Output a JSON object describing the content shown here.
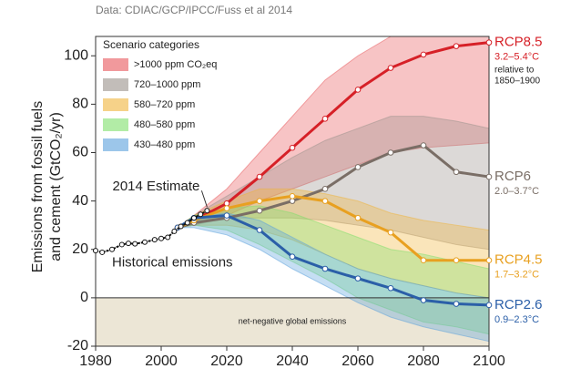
{
  "chart_data": {
    "type": "line",
    "source": "Data: CDIAC/GCP/IPCC/Fuss et al 2014",
    "ylabel": [
      "Emissions from fossil fuels",
      "and cement (GtCO₂/yr)"
    ],
    "xlim": [
      1980,
      2100
    ],
    "xticks": [
      1980,
      2000,
      2020,
      2040,
      2060,
      2080,
      2100
    ],
    "ylim": [
      -20,
      108
    ],
    "yticks": [
      -20,
      0,
      20,
      40,
      60,
      80,
      100
    ],
    "legend_title": "Scenario categories",
    "bands": {
      "x": [
        2010,
        2020,
        2030,
        2040,
        2050,
        2060,
        2070,
        2080,
        2090,
        2100
      ],
      "series": [
        {
          "name": ">1000 ppm CO₂eq",
          "color": "#e8555a",
          "low": [
            30,
            34,
            40,
            45,
            50,
            55,
            60,
            62,
            63,
            64
          ],
          "high": [
            34,
            45,
            60,
            75,
            90,
            100,
            108,
            108,
            108,
            108
          ]
        },
        {
          "name": "720–1000 ppm",
          "color": "#9a918b",
          "low": [
            30,
            33,
            33,
            33,
            32,
            30,
            28,
            25,
            22,
            20
          ],
          "high": [
            34,
            42,
            50,
            58,
            65,
            70,
            75,
            75,
            73,
            70
          ]
        },
        {
          "name": "580–720 ppm",
          "color": "#f0b43a",
          "low": [
            30,
            30,
            28,
            24,
            18,
            12,
            8,
            5,
            2,
            0
          ],
          "high": [
            34,
            40,
            45,
            45,
            43,
            40,
            35,
            32,
            30,
            28
          ]
        },
        {
          "name": "480–580 ppm",
          "color": "#7ee06a",
          "low": [
            30,
            28,
            22,
            15,
            8,
            0,
            -5,
            -10,
            -12,
            -15
          ],
          "high": [
            34,
            37,
            38,
            35,
            30,
            25,
            20,
            18,
            15,
            12
          ]
        },
        {
          "name": "430–480 ppm",
          "color": "#5aa0dc",
          "low": [
            29,
            26,
            20,
            12,
            5,
            -2,
            -8,
            -12,
            -15,
            -18
          ],
          "high": [
            33,
            35,
            32,
            25,
            18,
            12,
            8,
            5,
            2,
            0
          ]
        }
      ]
    },
    "series": [
      {
        "name": "RCP8.5",
        "temperature": "3.2–5.4°C",
        "note": [
          "relative to",
          "1850–1900"
        ],
        "color": "#d62027",
        "x": [
          2005,
          2010,
          2020,
          2030,
          2040,
          2050,
          2060,
          2070,
          2080,
          2090,
          2100
        ],
        "values": [
          29,
          32,
          39,
          50,
          62,
          74,
          86,
          95,
          100.5,
          104,
          105.5
        ]
      },
      {
        "name": "RCP6",
        "temperature": "2.0–3.7°C",
        "color": "#7a6e66",
        "x": [
          2005,
          2010,
          2020,
          2030,
          2040,
          2050,
          2060,
          2070,
          2080,
          2090,
          2100
        ],
        "values": [
          29,
          31,
          33,
          36,
          40,
          45,
          54,
          60,
          63,
          52,
          50
        ]
      },
      {
        "name": "RCP4.5",
        "temperature": "1.7–3.2°C",
        "color": "#e8a020",
        "x": [
          2005,
          2010,
          2020,
          2030,
          2040,
          2050,
          2060,
          2070,
          2080,
          2090,
          2100
        ],
        "values": [
          29,
          32,
          37,
          40,
          42,
          40,
          33,
          27,
          15.5,
          15.5,
          15.5
        ]
      },
      {
        "name": "RCP2.6",
        "temperature": "0.9–2.3°C",
        "color": "#2b5fa8",
        "x": [
          2005,
          2010,
          2020,
          2030,
          2040,
          2050,
          2060,
          2070,
          2080,
          2090,
          2100
        ],
        "values": [
          29,
          33,
          34,
          28,
          17,
          12,
          8,
          4,
          -1,
          -2.5,
          -3
        ]
      }
    ],
    "historical": {
      "name": "Historical emissions",
      "color": "#111111",
      "x": [
        1980,
        1982,
        1985,
        1988,
        1990,
        1992,
        1995,
        1998,
        2000,
        2002,
        2004,
        2006,
        2008,
        2010,
        2012,
        2014
      ],
      "values": [
        19.5,
        18.8,
        20,
        22,
        22.5,
        22.3,
        23,
        24,
        24.5,
        25,
        27.5,
        29.5,
        31,
        33,
        34.5,
        36
      ]
    },
    "annotations": {
      "estimate": "2014 Estimate",
      "negative": "net-negative global emissions"
    }
  }
}
